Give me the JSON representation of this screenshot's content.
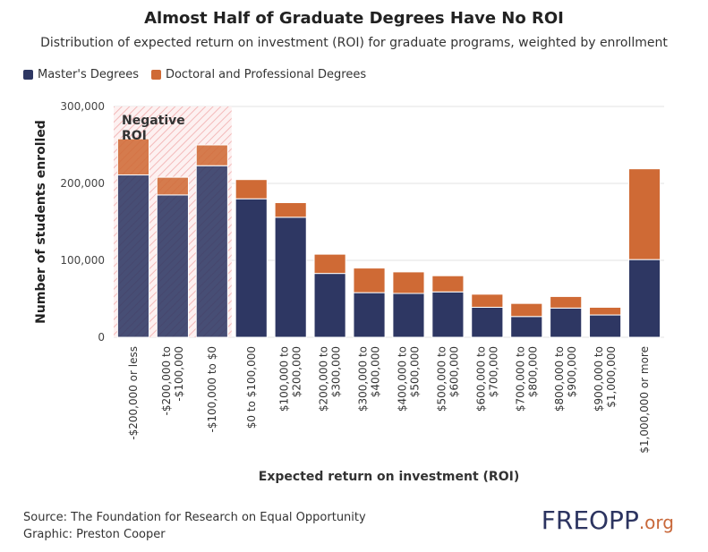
{
  "chart_data": {
    "type": "bar",
    "stacked": true,
    "title": "Almost Half of Graduate Degrees Have No ROI",
    "subtitle": "Distribution of expected return on investment (ROI) for graduate programs, weighted by enrollment",
    "xlabel": "Expected return on investment (ROI)",
    "ylabel": "Number of students enrolled",
    "ylim": [
      0,
      300000
    ],
    "yticks": [
      0,
      100000,
      200000,
      300000
    ],
    "ytick_labels": [
      "0",
      "100,000",
      "200,000",
      "300,000"
    ],
    "grid": true,
    "categories": [
      "-$200,000 or less",
      "-$200,000 to -$100,000",
      "-$100,000 to $0",
      "$0 to $100,000",
      "$100,000 to $200,000",
      "$200,000 to $300,000",
      "$300,000 to $400,000",
      "$400,000 to $500,000",
      "$500,000 to $600,000",
      "$600,000 to $700,000",
      "$700,000 to $800,000",
      "$800,000 to $900,000",
      "$900,000 to $1,000,000",
      "$1,000,000 or more"
    ],
    "category_lines": [
      [
        "-$200,000 or less"
      ],
      [
        "-$200,000 to",
        "-$100,000"
      ],
      [
        "-$100,000 to $0"
      ],
      [
        "$0 to $100,000"
      ],
      [
        "$100,000 to",
        "$200,000"
      ],
      [
        "$200,000 to",
        "$300,000"
      ],
      [
        "$300,000 to",
        "$400,000"
      ],
      [
        "$400,000 to",
        "$500,000"
      ],
      [
        "$500,000 to",
        "$600,000"
      ],
      [
        "$600,000 to",
        "$700,000"
      ],
      [
        "$700,000 to",
        "$800,000"
      ],
      [
        "$800,000 to",
        "$900,000"
      ],
      [
        "$900,000 to",
        "$1,000,000"
      ],
      [
        "$1,000,000 or more"
      ]
    ],
    "series": [
      {
        "name": "Master's Degrees",
        "color": "#2e3763",
        "values": [
          211000,
          185000,
          223000,
          180000,
          156000,
          83000,
          58000,
          57000,
          59000,
          39000,
          27000,
          38000,
          29000,
          101000
        ]
      },
      {
        "name": "Doctoral and Professional Degrees",
        "color": "#cf6a35",
        "values": [
          47000,
          23000,
          27000,
          25000,
          19000,
          25000,
          32000,
          28000,
          21000,
          17000,
          17000,
          15000,
          10000,
          118000
        ]
      }
    ],
    "annotations": [
      {
        "text_lines": [
          "Negative",
          "ROI"
        ],
        "category_span": [
          0,
          2
        ],
        "shade_color": "#f3b9b9"
      }
    ]
  },
  "footer": {
    "source": "Source: The Foundation for Research on Equal Opportunity",
    "graphic": "Graphic: Preston Cooper"
  },
  "logo": {
    "text_main": "FREOPP",
    "text_suffix": ".org"
  }
}
